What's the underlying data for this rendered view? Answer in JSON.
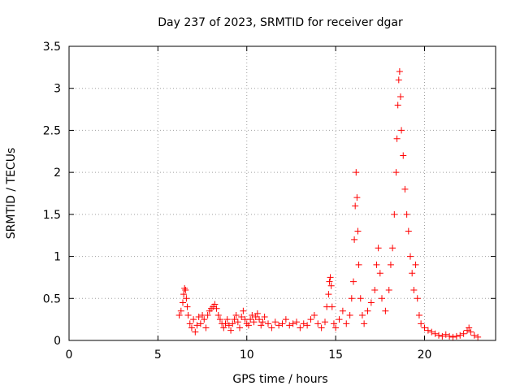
{
  "chart_data": {
    "type": "scatter",
    "title": "Day 237 of 2023, SRMTID for receiver dgar",
    "xlabel": "GPS time / hours",
    "ylabel": "SRMTID / TECUs",
    "xlim": [
      0,
      24
    ],
    "ylim": [
      0,
      3.5
    ],
    "xticks": [
      0,
      5,
      10,
      15,
      20
    ],
    "yticks": [
      0,
      0.5,
      1,
      1.5,
      2,
      2.5,
      3,
      3.5
    ],
    "ytick_labels": [
      "0",
      "0.5",
      "1",
      "1.5",
      "2",
      "2.5",
      "3",
      "3.5"
    ],
    "grid": true,
    "marker": "+",
    "color": "#ff0000",
    "series": [
      {
        "name": "SRMTID",
        "points": [
          [
            6.2,
            0.3
          ],
          [
            6.3,
            0.35
          ],
          [
            6.4,
            0.45
          ],
          [
            6.45,
            0.55
          ],
          [
            6.5,
            0.62
          ],
          [
            6.55,
            0.6
          ],
          [
            6.6,
            0.5
          ],
          [
            6.65,
            0.4
          ],
          [
            6.7,
            0.3
          ],
          [
            6.8,
            0.2
          ],
          [
            6.9,
            0.15
          ],
          [
            7.0,
            0.25
          ],
          [
            7.1,
            0.1
          ],
          [
            7.2,
            0.18
          ],
          [
            7.3,
            0.28
          ],
          [
            7.4,
            0.2
          ],
          [
            7.5,
            0.3
          ],
          [
            7.6,
            0.25
          ],
          [
            7.7,
            0.15
          ],
          [
            7.8,
            0.3
          ],
          [
            7.9,
            0.35
          ],
          [
            8.0,
            0.38
          ],
          [
            8.1,
            0.4
          ],
          [
            8.2,
            0.43
          ],
          [
            8.3,
            0.38
          ],
          [
            8.4,
            0.3
          ],
          [
            8.5,
            0.25
          ],
          [
            8.6,
            0.2
          ],
          [
            8.7,
            0.15
          ],
          [
            8.8,
            0.2
          ],
          [
            8.9,
            0.25
          ],
          [
            9.0,
            0.18
          ],
          [
            9.1,
            0.12
          ],
          [
            9.2,
            0.2
          ],
          [
            9.3,
            0.25
          ],
          [
            9.4,
            0.3
          ],
          [
            9.5,
            0.22
          ],
          [
            9.6,
            0.15
          ],
          [
            9.7,
            0.28
          ],
          [
            9.8,
            0.35
          ],
          [
            9.9,
            0.25
          ],
          [
            10.0,
            0.2
          ],
          [
            10.1,
            0.18
          ],
          [
            10.2,
            0.25
          ],
          [
            10.3,
            0.3
          ],
          [
            10.4,
            0.22
          ],
          [
            10.5,
            0.28
          ],
          [
            10.6,
            0.32
          ],
          [
            10.7,
            0.25
          ],
          [
            10.8,
            0.18
          ],
          [
            10.9,
            0.22
          ],
          [
            11.0,
            0.28
          ],
          [
            11.2,
            0.2
          ],
          [
            11.4,
            0.15
          ],
          [
            11.6,
            0.22
          ],
          [
            11.8,
            0.18
          ],
          [
            12.0,
            0.2
          ],
          [
            12.2,
            0.25
          ],
          [
            12.4,
            0.18
          ],
          [
            12.6,
            0.2
          ],
          [
            12.8,
            0.22
          ],
          [
            13.0,
            0.15
          ],
          [
            13.2,
            0.2
          ],
          [
            13.4,
            0.18
          ],
          [
            13.6,
            0.25
          ],
          [
            13.8,
            0.3
          ],
          [
            14.0,
            0.2
          ],
          [
            14.2,
            0.15
          ],
          [
            14.4,
            0.22
          ],
          [
            14.5,
            0.4
          ],
          [
            14.6,
            0.55
          ],
          [
            14.65,
            0.7
          ],
          [
            14.7,
            0.75
          ],
          [
            14.75,
            0.65
          ],
          [
            14.8,
            0.4
          ],
          [
            14.9,
            0.2
          ],
          [
            15.0,
            0.15
          ],
          [
            15.2,
            0.25
          ],
          [
            15.4,
            0.35
          ],
          [
            15.6,
            0.2
          ],
          [
            15.8,
            0.3
          ],
          [
            15.9,
            0.5
          ],
          [
            16.0,
            0.7
          ],
          [
            16.05,
            1.2
          ],
          [
            16.1,
            1.6
          ],
          [
            16.15,
            2.0
          ],
          [
            16.2,
            1.7
          ],
          [
            16.25,
            1.3
          ],
          [
            16.3,
            0.9
          ],
          [
            16.4,
            0.5
          ],
          [
            16.5,
            0.3
          ],
          [
            16.6,
            0.2
          ],
          [
            16.8,
            0.35
          ],
          [
            17.0,
            0.45
          ],
          [
            17.2,
            0.6
          ],
          [
            17.3,
            0.9
          ],
          [
            17.4,
            1.1
          ],
          [
            17.5,
            0.8
          ],
          [
            17.6,
            0.5
          ],
          [
            17.8,
            0.35
          ],
          [
            18.0,
            0.6
          ],
          [
            18.1,
            0.9
          ],
          [
            18.2,
            1.1
          ],
          [
            18.3,
            1.5
          ],
          [
            18.4,
            2.0
          ],
          [
            18.45,
            2.4
          ],
          [
            18.5,
            2.8
          ],
          [
            18.55,
            3.1
          ],
          [
            18.6,
            3.2
          ],
          [
            18.65,
            2.9
          ],
          [
            18.7,
            2.5
          ],
          [
            18.8,
            2.2
          ],
          [
            18.9,
            1.8
          ],
          [
            19.0,
            1.5
          ],
          [
            19.1,
            1.3
          ],
          [
            19.2,
            1.0
          ],
          [
            19.3,
            0.8
          ],
          [
            19.4,
            0.6
          ],
          [
            19.5,
            0.9
          ],
          [
            19.6,
            0.5
          ],
          [
            19.7,
            0.3
          ],
          [
            19.8,
            0.2
          ],
          [
            20.0,
            0.15
          ],
          [
            20.2,
            0.12
          ],
          [
            20.4,
            0.1
          ],
          [
            20.6,
            0.08
          ],
          [
            20.8,
            0.06
          ],
          [
            21.0,
            0.05
          ],
          [
            21.2,
            0.07
          ],
          [
            21.4,
            0.05
          ],
          [
            21.6,
            0.04
          ],
          [
            21.8,
            0.05
          ],
          [
            22.0,
            0.06
          ],
          [
            22.2,
            0.08
          ],
          [
            22.4,
            0.12
          ],
          [
            22.5,
            0.15
          ],
          [
            22.6,
            0.1
          ],
          [
            22.8,
            0.06
          ],
          [
            23.0,
            0.04
          ]
        ]
      }
    ]
  }
}
